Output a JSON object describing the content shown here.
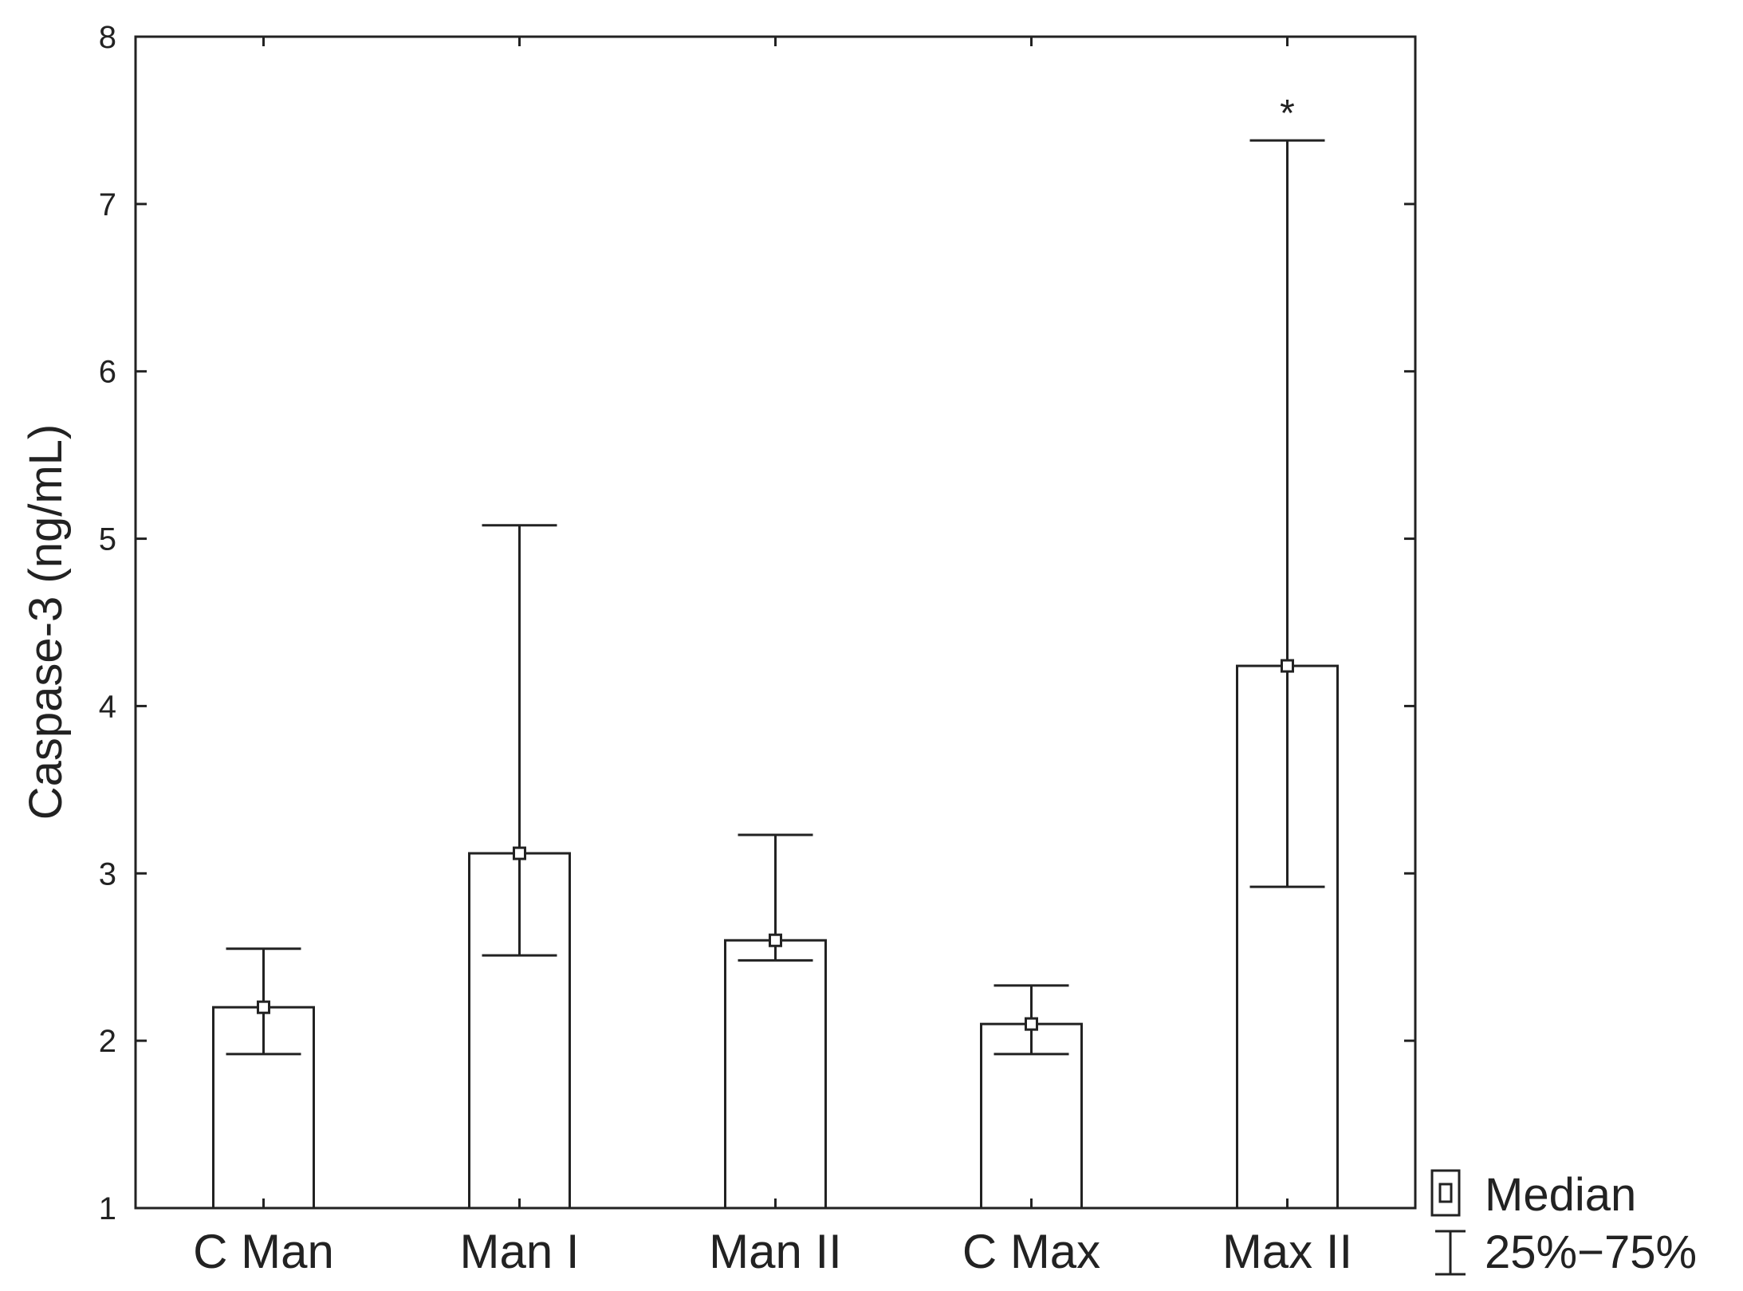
{
  "chart_data": {
    "type": "bar",
    "title": "",
    "xlabel": "",
    "ylabel": "Caspase-3 (ng/mL)",
    "ylim": [
      1,
      8
    ],
    "yticks": [
      1,
      2,
      3,
      4,
      5,
      6,
      7,
      8
    ],
    "categories": [
      "C Man",
      "Man I",
      "Man II",
      "C Max",
      "Max II"
    ],
    "series": [
      {
        "name": "Median",
        "values": [
          2.2,
          3.12,
          2.6,
          2.1,
          4.24
        ],
        "q25": [
          1.92,
          2.51,
          2.48,
          1.92,
          2.92
        ],
        "q75": [
          2.55,
          5.08,
          3.23,
          2.33,
          7.38
        ]
      }
    ],
    "annotations": [
      {
        "category": "Max II",
        "text": "*"
      }
    ],
    "legend": {
      "position": "bottom-right",
      "items": [
        {
          "symbol": "square-marker",
          "label": "Median"
        },
        {
          "symbol": "whisker",
          "label": "25%−75%"
        }
      ]
    },
    "grid": false
  }
}
